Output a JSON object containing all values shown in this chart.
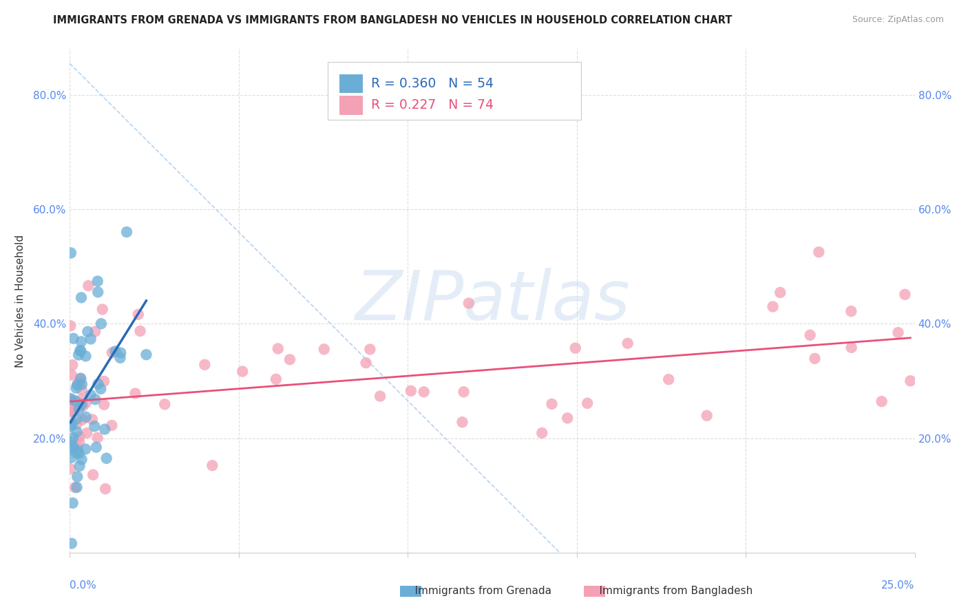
{
  "title": "IMMIGRANTS FROM GRENADA VS IMMIGRANTS FROM BANGLADESH NO VEHICLES IN HOUSEHOLD CORRELATION CHART",
  "source": "Source: ZipAtlas.com",
  "ylabel": "No Vehicles in Household",
  "grenada_color": "#6aaed6",
  "bangladesh_color": "#f4a0b5",
  "grenada_line_color": "#2a6ab5",
  "bangladesh_line_color": "#e8507a",
  "diag_color": "#aaccee",
  "tick_color": "#5588ee",
  "grid_color": "#dddddd",
  "grenada_R": 0.36,
  "grenada_N": 54,
  "bangladesh_R": 0.227,
  "bangladesh_N": 74,
  "xmin": 0.0,
  "xmax": 0.25,
  "ymin": 0.0,
  "ymax": 0.88,
  "ytick_vals": [
    0.0,
    0.2,
    0.4,
    0.6,
    0.8
  ],
  "ytick_labels": [
    "",
    "20.0%",
    "40.0%",
    "60.0%",
    "80.0%"
  ],
  "xtick_label_left": "0.0%",
  "xtick_label_right": "25.0%",
  "watermark_text": "ZIPatlas",
  "legend_grenada_label": "Immigrants from Grenada",
  "legend_bangladesh_label": "Immigrants from Bangladesh",
  "background_color": "#ffffff"
}
